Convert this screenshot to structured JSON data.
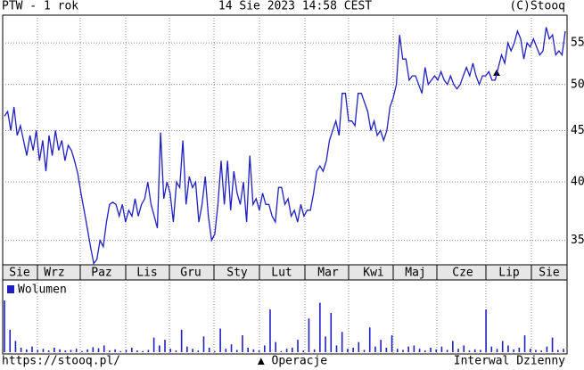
{
  "header": {
    "left": "PTW - 1 rok",
    "center": "14 Sie 2023 14:58 CEST",
    "right": "(C)Stooq"
  },
  "chart_data": {
    "type": "line",
    "months": [
      "Sie",
      "Wrz",
      "Paz",
      "Lis",
      "Gru",
      "Sty",
      "Lut",
      "Mar",
      "Kwi",
      "Maj",
      "Cze",
      "Lip",
      "Sie"
    ],
    "ylim": [
      33.1,
      58.6
    ],
    "yticks": [
      35,
      40,
      45,
      50,
      55
    ],
    "log_scale": true,
    "grid": true,
    "series": [
      {
        "name": "PTW",
        "color": "#2020c0",
        "values": [
          46.5,
          47,
          45,
          47.5,
          44.5,
          45.5,
          44,
          42.5,
          44.5,
          43,
          45,
          42,
          44,
          41,
          44.5,
          42.5,
          45,
          43,
          44,
          42,
          43.5,
          43,
          42,
          40.8,
          39,
          37.5,
          36,
          34.5,
          33.2,
          33.5,
          35,
          34.5,
          36.5,
          38,
          38.2,
          38,
          37,
          38,
          36.5,
          37.5,
          37,
          38.5,
          37,
          38,
          38.5,
          40,
          38,
          37,
          36,
          44.8,
          38.5,
          40,
          39,
          36.5,
          40,
          39.5,
          44,
          38,
          40.5,
          39.5,
          40,
          36.5,
          38,
          40.5,
          37,
          35,
          35.5,
          38,
          42,
          38,
          42,
          37.5,
          41,
          39,
          38,
          40,
          36.5,
          42.5,
          38,
          38.5,
          37.5,
          39,
          38,
          38,
          37,
          36.5,
          39.5,
          39.5,
          38,
          38.5,
          37,
          37.5,
          36.5,
          38,
          37,
          37.5,
          37.5,
          39,
          41,
          41.5,
          41,
          42,
          44,
          45,
          46,
          44.5,
          49,
          49,
          46,
          46,
          45.5,
          49,
          49,
          48,
          47,
          45,
          46,
          44.5,
          45,
          44,
          45,
          47.5,
          48.5,
          50,
          56,
          53,
          53,
          50.5,
          51,
          51,
          50,
          49,
          52,
          50,
          50.5,
          51,
          50.5,
          51.5,
          50.5,
          50,
          51,
          50,
          49.5,
          50,
          51,
          52,
          51,
          52.5,
          51,
          50,
          51,
          51,
          51.5,
          50.5,
          50.5,
          52,
          53.5,
          52.5,
          55,
          54,
          55,
          56.5,
          55.5,
          53,
          55,
          54.5,
          55.5,
          54.5,
          53.5,
          54,
          57,
          55.5,
          56,
          53.5,
          54,
          53.5,
          56.5
        ]
      }
    ],
    "volume": {
      "name": "Wolumen",
      "color": "#2020c0",
      "values": [
        92,
        40,
        20,
        8,
        5,
        10,
        4,
        6,
        3,
        8,
        5,
        3,
        4,
        6,
        2,
        5,
        9,
        7,
        12,
        3,
        5,
        2,
        4,
        8,
        3,
        2,
        4,
        26,
        12,
        22,
        6,
        3,
        40,
        10,
        6,
        3,
        28,
        8,
        2,
        42,
        6,
        14,
        4,
        30,
        8,
        5,
        3,
        12,
        76,
        18,
        2,
        6,
        8,
        22,
        3,
        60,
        5,
        88,
        28,
        70,
        12,
        36,
        6,
        8,
        18,
        4,
        44,
        10,
        22,
        8,
        30,
        6,
        4,
        10,
        12,
        6,
        3,
        8,
        5,
        10,
        4,
        20,
        6,
        12,
        3,
        5,
        4,
        76,
        10,
        6,
        20,
        12,
        5,
        8,
        30,
        6,
        4,
        3,
        10,
        26,
        4,
        6
      ]
    },
    "legend": "Wolumen"
  },
  "footer": {
    "left": "https://stooq.pl/",
    "center": "▲ Operacje",
    "right": "Interwal Dzienny"
  }
}
